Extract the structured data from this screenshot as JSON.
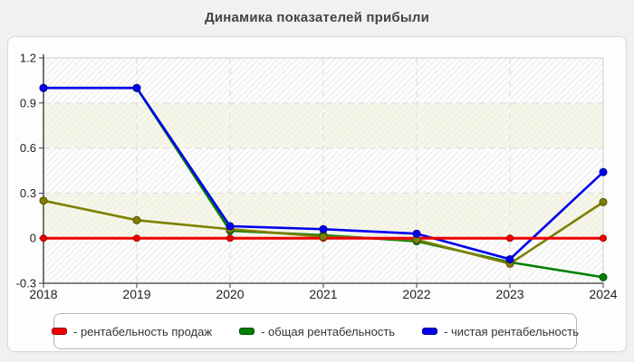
{
  "chart_data": {
    "type": "line",
    "title": "Динамика показателей прибыли",
    "x": [
      "2018",
      "2019",
      "2020",
      "2021",
      "2022",
      "2023",
      "2024"
    ],
    "y_ticks": [
      "1.2",
      "0.9",
      "0.6",
      "0.3",
      "0",
      "-0.3"
    ],
    "ylim": [
      -0.3,
      1.2
    ],
    "grid": "dashed",
    "legend_position": "bottom",
    "series": [
      {
        "name": "рентабельность продаж",
        "legend_label": "- рентабельность продаж",
        "color": "#ee0000",
        "values": [
          0,
          0,
          0,
          0,
          0,
          0,
          0
        ]
      },
      {
        "name": "общая рентабельность",
        "legend_label": "- общая рентабельность",
        "color": "#008000",
        "values": [
          1.0,
          1.0,
          0.05,
          0.02,
          -0.02,
          -0.16,
          -0.26
        ]
      },
      {
        "name": "чистая рентабельность",
        "legend_label": "- чистая рентабельность",
        "color": "#0000ee",
        "values": [
          1.0,
          1.0,
          0.08,
          0.06,
          0.03,
          -0.14,
          0.44
        ]
      },
      {
        "name": "",
        "legend_label": "",
        "color": "#7f7f00",
        "values": [
          0.25,
          0.12,
          0.06,
          0.01,
          -0.01,
          -0.17,
          0.24
        ]
      }
    ],
    "style": {
      "band_light": "#fdfdfd",
      "band_cream": "#f7f7e8",
      "hatch_color": "#e9e9e9",
      "grid_color": "#dcdcdc",
      "axis_dark": "#3c3c3c",
      "axis_light": "#cccccc",
      "tick_label_color": "#222222"
    }
  }
}
